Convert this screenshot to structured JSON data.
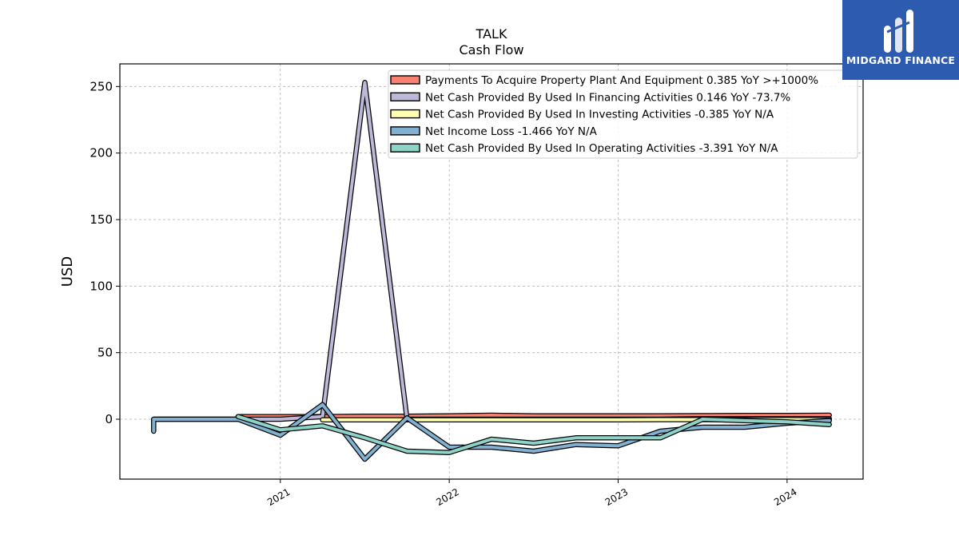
{
  "chart_data": {
    "type": "line",
    "title": "TALK",
    "subtitle": "Cash Flow",
    "ylabel": "USD",
    "xlabel": "",
    "ylim": [
      -45,
      267
    ],
    "xlim": [
      2020.05,
      2024.45
    ],
    "yticks": [
      0,
      50,
      100,
      150,
      200,
      250
    ],
    "xticks": [
      "2021",
      "2022",
      "2023",
      "2024"
    ],
    "grid": true,
    "legend_position": "top-right",
    "series": [
      {
        "name": "Payments To Acquire Property Plant And Equipment  0.385 YoY >+1000%",
        "color": "#fa8072",
        "x": [
          2020.75,
          2021.0,
          2021.25,
          2021.5,
          2021.75,
          2022.0,
          2022.25,
          2022.5,
          2022.75,
          2023.0,
          2023.25,
          2023.5,
          2023.75,
          2024.0,
          2024.25
        ],
        "y": [
          2.0,
          2.0,
          2.0,
          2.2,
          2.2,
          2.5,
          3.0,
          2.5,
          2.5,
          2.5,
          2.6,
          2.7,
          2.8,
          2.9,
          3.0
        ]
      },
      {
        "name": "Net Cash Provided By Used In Financing Activities  0.146 YoY -73.7%",
        "color": "#bcb9d8",
        "x": [
          2020.25,
          2020.5,
          2020.75,
          2021.0,
          2021.25,
          2021.5,
          2021.75,
          2022.0,
          2022.25,
          2022.5,
          2022.75,
          2023.0,
          2023.25,
          2023.5,
          2023.75,
          2024.0,
          2024.25
        ],
        "y": [
          0.0,
          0.0,
          0.0,
          0.0,
          2.0,
          253.0,
          0.0,
          0.0,
          0.0,
          0.0,
          0.0,
          0.0,
          0.0,
          0.5,
          0.5,
          0.5,
          0.5
        ]
      },
      {
        "name": "Net Cash Provided By Used In Investing Activities  -0.385 YoY N/A",
        "color": "#ffffb3",
        "x": [
          2021.25,
          2021.5,
          2021.75,
          2022.0,
          2022.25,
          2022.5,
          2022.75,
          2023.0,
          2023.25,
          2023.5,
          2023.75,
          2024.0,
          2024.25
        ],
        "y": [
          -0.5,
          -0.5,
          -0.5,
          -0.5,
          -0.5,
          -0.5,
          -0.5,
          -0.4,
          -0.3,
          -0.3,
          -0.3,
          -0.3,
          -0.4
        ]
      },
      {
        "name": "Net Income Loss  -1.466 YoY N/A",
        "color": "#80b1d3",
        "x": [
          2020.25,
          2020.25,
          2020.5,
          2020.75,
          2021.0,
          2021.25,
          2021.5,
          2021.75,
          2022.0,
          2022.25,
          2022.5,
          2022.75,
          2023.0,
          2023.25,
          2023.5,
          2023.75,
          2024.0,
          2024.25
        ],
        "y": [
          -9.0,
          0.0,
          0.0,
          0.0,
          -12.0,
          11.0,
          -30.0,
          1.0,
          -21.0,
          -21.0,
          -24.0,
          -19.0,
          -20.0,
          -9.0,
          -6.0,
          -6.0,
          -3.0,
          -1.0
        ]
      },
      {
        "name": "Net Cash Provided By Used In Operating Activities  -3.391 YoY N/A",
        "color": "#8dd3c7",
        "x": [
          2020.75,
          2021.0,
          2021.25,
          2021.5,
          2021.75,
          2022.0,
          2022.25,
          2022.5,
          2022.75,
          2023.0,
          2023.25,
          2023.5,
          2023.75,
          2024.0,
          2024.25
        ],
        "y": [
          2.0,
          -8.0,
          -5.0,
          -14.0,
          -24.0,
          -25.0,
          -15.0,
          -18.0,
          -14.0,
          -14.0,
          -14.0,
          0.0,
          -1.0,
          -2.0,
          -4.0
        ]
      }
    ]
  },
  "branding": {
    "name": "MIDGARD FINANCE",
    "background": "#2d5bb0"
  }
}
